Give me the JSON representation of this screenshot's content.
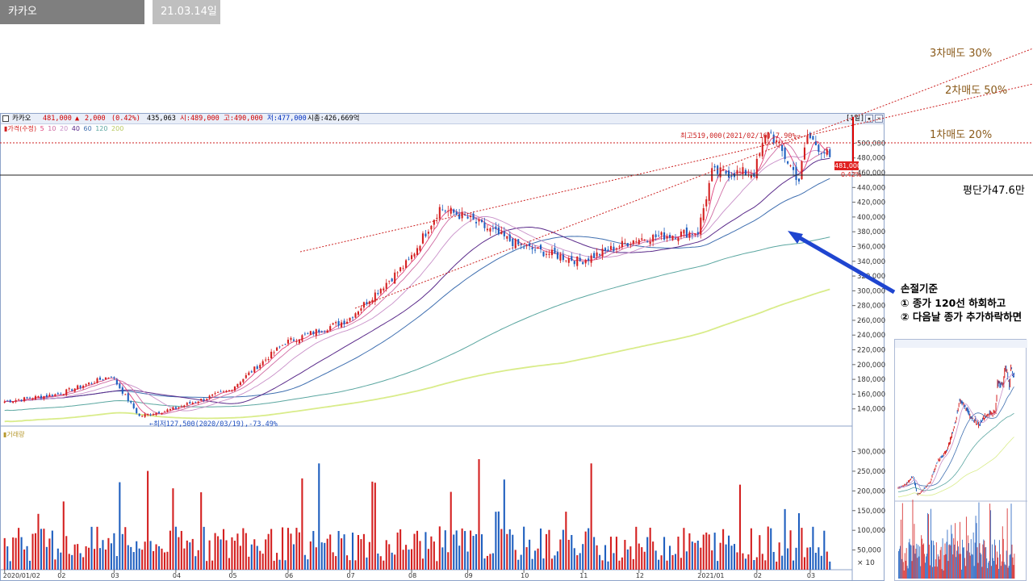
{
  "header": {
    "stock_tab": "카카오",
    "date_tab": "21.03.14일"
  },
  "chart_header": {
    "name": "카카오",
    "price": "481,000",
    "change_arrow": "▲",
    "change": "2,000",
    "change_pct": "(0.42%)",
    "volume": "435,063",
    "open": "시:489,000",
    "high": "고:490,000",
    "low": "저:477,000",
    "market_cap": "시총:426,669억",
    "period_btn": "[1일]"
  },
  "legend": {
    "label": "▮가격(수정)",
    "ma": [
      "5",
      "10",
      "20",
      "40",
      "60",
      "120",
      "200"
    ],
    "volume_label": "▮거래량"
  },
  "annotations": {
    "high": "최고519,000(2021/02/16),7.90%→",
    "low": "←최저127,500(2020/03/19),-73.49%",
    "sell3": "3차매도 30%",
    "sell2": "2차매도 50%",
    "sell1": "1차매도 20%",
    "avg_price": "평단가47.6만",
    "stop_title": "손절기준",
    "stop_rule1": "① 종가 120선 하회하고",
    "stop_rule2": "② 다음날 종가 추가하락하면",
    "current_price_box": "481,000",
    "current_pct": "0.42%",
    "volume_multiplier": "× 10"
  },
  "colors": {
    "up": "#d42020",
    "down": "#1f5fbf",
    "ma5": "#e0407a",
    "ma10": "#cf6aa2",
    "ma20": "#c88fc8",
    "ma40": "#5a2a8a",
    "ma60": "#3f6fb0",
    "ma120": "#5aa6a0",
    "ma200": "#d9ec8a",
    "arrow": "#1f45d0",
    "trendline": "#cc2222"
  },
  "chart_data": {
    "type": "candlestick",
    "y_axis_labels": [
      "500,000",
      "480,000",
      "460,000",
      "440,000",
      "420,000",
      "400,000",
      "380,000",
      "360,000",
      "340,000",
      "320,000",
      "300,000",
      "280,000",
      "260,000",
      "240,000",
      "220,000",
      "200,000",
      "180,000",
      "160,000",
      "140,000"
    ],
    "ylim": [
      120000,
      530000
    ],
    "x_axis_labels": [
      "2020/01/02",
      "02",
      "03",
      "04",
      "05",
      "06",
      "07",
      "08",
      "09",
      "10",
      "11",
      "12",
      "2021/01",
      "02",
      "03"
    ],
    "close_approx": [
      {
        "month": "2020/01",
        "close": 160000
      },
      {
        "month": "2020/02",
        "close": 185000
      },
      {
        "month": "2020/03",
        "close": 140000
      },
      {
        "month": "2020/04",
        "close": 165000
      },
      {
        "month": "2020/05",
        "close": 230000
      },
      {
        "month": "2020/06",
        "close": 260000
      },
      {
        "month": "2020/07",
        "close": 340000
      },
      {
        "month": "2020/08",
        "close": 400000
      },
      {
        "month": "2020/09",
        "close": 360000
      },
      {
        "month": "2020/10",
        "close": 340000
      },
      {
        "month": "2020/11",
        "close": 370000
      },
      {
        "month": "2020/12",
        "close": 380000
      },
      {
        "month": "2021/01",
        "close": 460000
      },
      {
        "month": "2021/02",
        "close": 510000
      },
      {
        "month": "2021/03",
        "close": 481000
      }
    ],
    "high": 519000,
    "low": 127500,
    "volume_axis_labels": [
      "300,000",
      "250,000",
      "200,000",
      "150,000",
      "100,000",
      "50,000"
    ],
    "volume_ylim": [
      0,
      340000
    ]
  }
}
